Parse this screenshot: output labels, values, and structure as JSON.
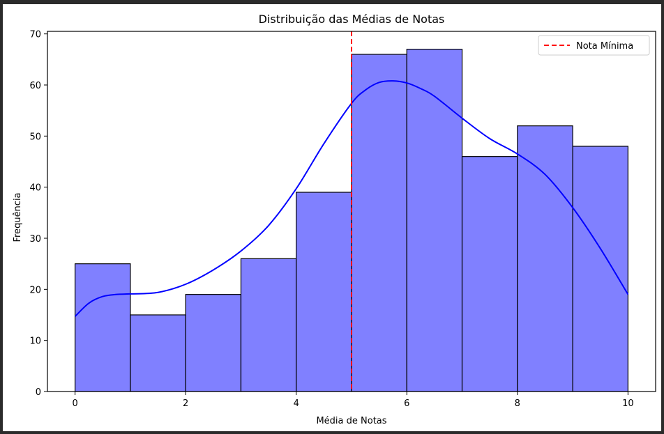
{
  "chart_data": {
    "type": "bar",
    "title": "Distribuição das Médias de Notas",
    "xlabel": "Média de Notas",
    "ylabel": "Frequência",
    "xlim": [
      -0.5,
      10.5
    ],
    "ylim": [
      0,
      70.5
    ],
    "xticks": [
      0,
      2,
      4,
      6,
      8,
      10
    ],
    "yticks": [
      0,
      10,
      20,
      30,
      40,
      50,
      60,
      70
    ],
    "bins": [
      {
        "x0": 0,
        "x1": 1,
        "count": 25
      },
      {
        "x0": 1,
        "x1": 2,
        "count": 15
      },
      {
        "x0": 2,
        "x1": 3,
        "count": 19
      },
      {
        "x0": 3,
        "x1": 4,
        "count": 26
      },
      {
        "x0": 4,
        "x1": 5,
        "count": 39
      },
      {
        "x0": 5,
        "x1": 6,
        "count": 66
      },
      {
        "x0": 6,
        "x1": 7,
        "count": 67
      },
      {
        "x0": 7,
        "x1": 8,
        "count": 46
      },
      {
        "x0": 8,
        "x1": 9,
        "count": 52
      },
      {
        "x0": 9,
        "x1": 10,
        "count": 48
      }
    ],
    "kde": {
      "x": [
        0,
        0.25,
        0.5,
        0.75,
        1.0,
        1.5,
        2.0,
        2.5,
        3.0,
        3.5,
        4.0,
        4.5,
        5.0,
        5.25,
        5.5,
        5.75,
        6.0,
        6.25,
        6.5,
        7.0,
        7.5,
        8.0,
        8.5,
        9.0,
        9.5,
        10.0
      ],
      "y": [
        14.7,
        17.3,
        18.6,
        19.0,
        19.1,
        19.4,
        21.0,
        23.8,
        27.5,
        32.5,
        39.7,
        48.5,
        56.4,
        59.0,
        60.5,
        60.8,
        60.4,
        59.3,
        57.8,
        53.5,
        49.5,
        46.5,
        42.5,
        36.0,
        28.0,
        19.0
      ]
    },
    "reference_line": {
      "x": 5,
      "label": "Nota Mínima",
      "color": "#ff0000"
    },
    "legend": {
      "position": "top-right",
      "entries": [
        "Nota Mínima"
      ]
    },
    "colors": {
      "bar_fill": "#8080ff",
      "bar_edge": "#000000",
      "kde_line": "#0000ff"
    },
    "grid": false
  }
}
